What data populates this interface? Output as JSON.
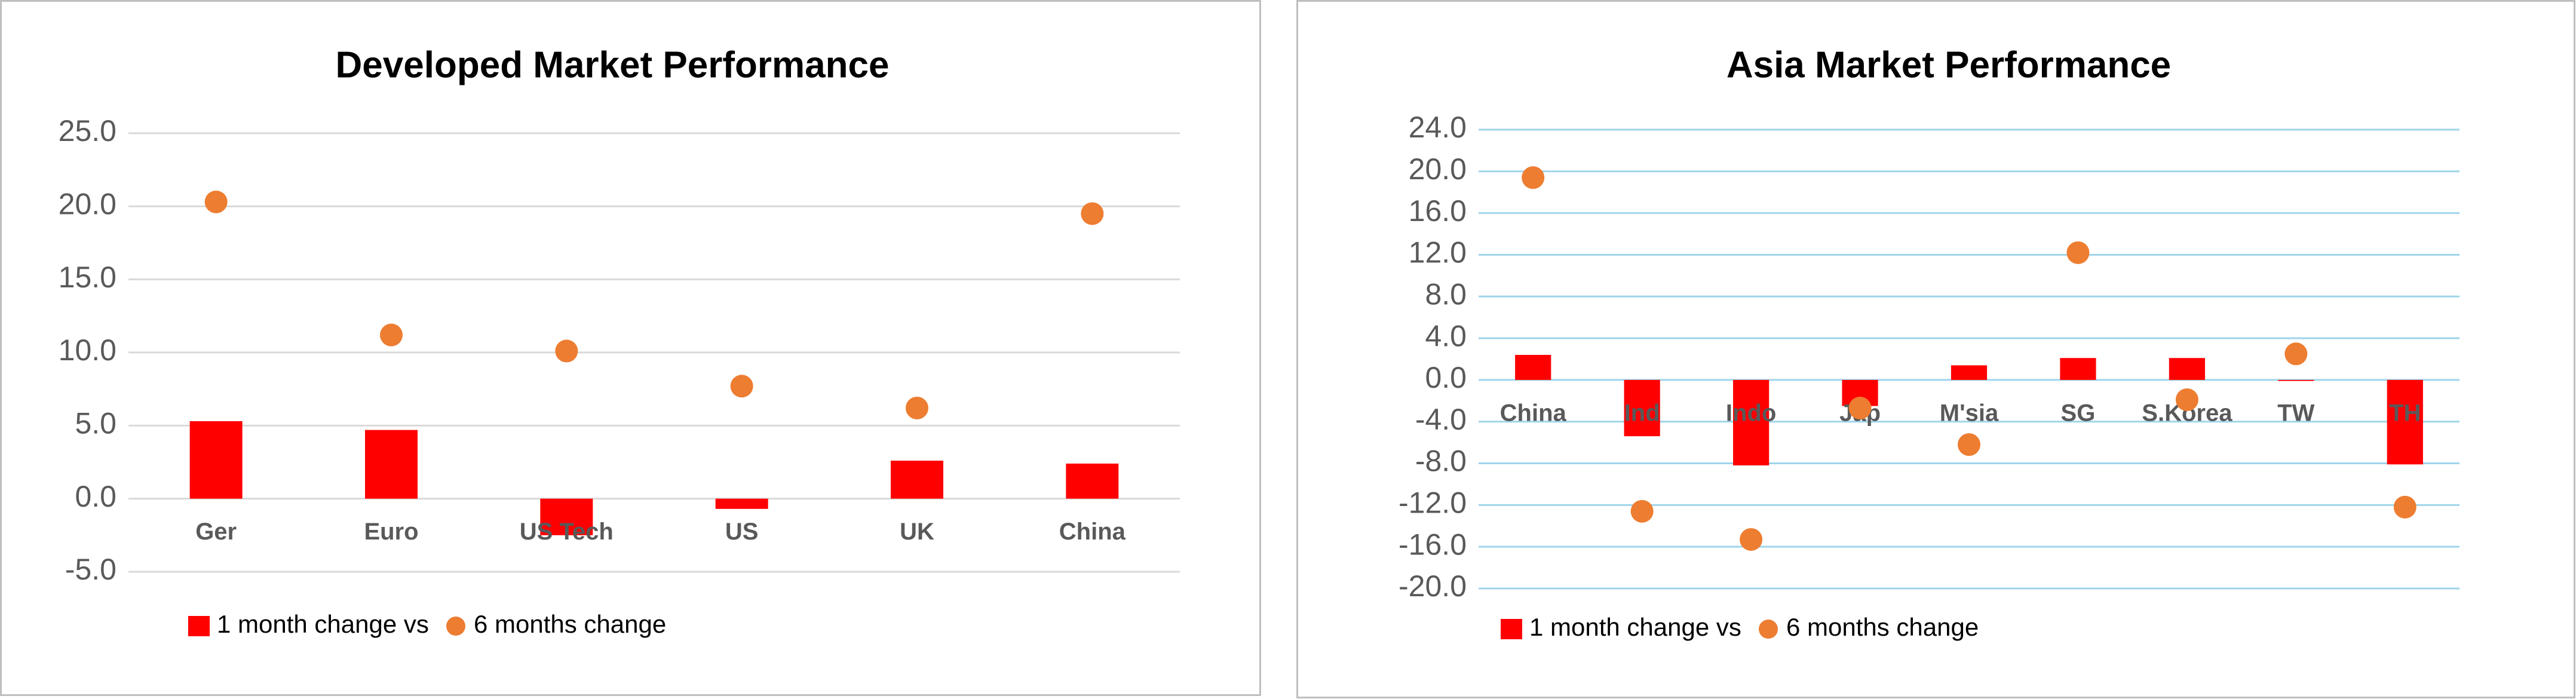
{
  "chart_data": [
    {
      "type": "combo",
      "title": "Developed Market Performance",
      "categories": [
        "Ger",
        "Euro",
        "US Tech",
        "US",
        "UK",
        "China"
      ],
      "series": [
        {
          "name": "1 month change vs",
          "mark": "bar",
          "color": "#ff0000",
          "values": [
            5.3,
            4.7,
            -2.5,
            -0.7,
            2.6,
            2.4
          ]
        },
        {
          "name": "6 months change",
          "mark": "dot",
          "color": "#ed7d31",
          "values": [
            20.3,
            11.2,
            10.1,
            7.7,
            6.2,
            19.5
          ]
        }
      ],
      "ylim": [
        -5,
        25
      ],
      "yticks": [
        {
          "value": -5,
          "label": "-5.0"
        },
        {
          "value": 0,
          "label": "0.0"
        },
        {
          "value": 5,
          "label": "5.0"
        },
        {
          "value": 10,
          "label": "10.0"
        },
        {
          "value": 15,
          "label": "15.0"
        },
        {
          "value": 20,
          "label": "20.0"
        },
        {
          "value": 25,
          "label": "25.0"
        }
      ],
      "grid": true,
      "grid_color": "#d9d9d9",
      "legend": "bottom-left"
    },
    {
      "type": "combo",
      "title": "Asia Market Performance",
      "categories": [
        "China",
        "Ind",
        "Indo",
        "Jap",
        "M'sia",
        "SG",
        "S.Korea",
        "TW",
        "TH"
      ],
      "series": [
        {
          "name": "1 month change vs",
          "mark": "bar",
          "color": "#ff0000",
          "values": [
            2.4,
            -5.4,
            -8.2,
            -2.5,
            1.4,
            2.1,
            2.1,
            -0.1,
            -8.1
          ]
        },
        {
          "name": "6 months change",
          "mark": "dot",
          "color": "#ed7d31",
          "values": [
            19.4,
            -12.6,
            -15.3,
            -2.7,
            -6.2,
            12.2,
            -1.9,
            2.5,
            -12.2
          ]
        }
      ],
      "ylim": [
        -20,
        24
      ],
      "yticks": [
        {
          "value": -20,
          "label": "-20.0"
        },
        {
          "value": -16,
          "label": "-16.0"
        },
        {
          "value": -12,
          "label": "-12.0"
        },
        {
          "value": -8,
          "label": "-8.0"
        },
        {
          "value": -4,
          "label": "-4.0"
        },
        {
          "value": 0,
          "label": "0.0"
        },
        {
          "value": 4,
          "label": "4.0"
        },
        {
          "value": 8,
          "label": "8.0"
        },
        {
          "value": 12,
          "label": "12.0"
        },
        {
          "value": 16,
          "label": "16.0"
        },
        {
          "value": 20,
          "label": "20.0"
        },
        {
          "value": 24,
          "label": "24.0"
        }
      ],
      "grid": true,
      "grid_color": "#9fd5ea",
      "legend": "bottom-left"
    }
  ]
}
